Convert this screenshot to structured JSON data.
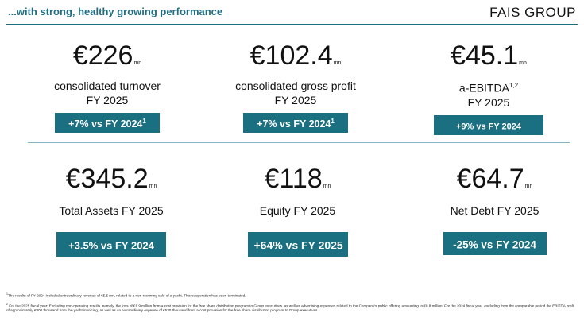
{
  "header": {
    "title": "...with strong, healthy growing performance",
    "brand": "FAIS GROUP"
  },
  "kpis": [
    {
      "value": "€226",
      "unit": "mn",
      "label": "consolidated turnover",
      "sup": "",
      "sublabel": "FY 2025",
      "badge": "+7% vs FY 2024",
      "badge_sup": "1"
    },
    {
      "value": "€102.4",
      "unit": "mn",
      "label": "consolidated gross profit",
      "sup": "",
      "sublabel": "FY 2025",
      "badge": "+7% vs FY 2024",
      "badge_sup": "1"
    },
    {
      "value": "€45.1",
      "unit": "mn",
      "label": "a-EBITDA",
      "sup": "1,2",
      "sublabel": "FY 2025",
      "badge": "+9% vs FY 2024",
      "badge_sup": ""
    },
    {
      "value": "€345.2",
      "unit": "mn",
      "label": "Total Assets FY 2025",
      "sup": "",
      "sublabel": "",
      "badge": "+3.5% vs FY 2024",
      "badge_sup": ""
    },
    {
      "value": "€118",
      "unit": "mn",
      "label": "Equity FY 2025",
      "sup": "",
      "sublabel": "",
      "badge": "+64% vs FY 2025",
      "badge_sup": ""
    },
    {
      "value": "€64.7",
      "unit": "mn",
      "label": "Net Debt FY 2025",
      "sup": "",
      "sublabel": "",
      "badge": "-25% vs FY 2024",
      "badge_sup": ""
    }
  ],
  "footnotes": [
    {
      "num": "1",
      "text": "The results of FY 2024 included extraordinary revenue of €5.5 mn, related to a non-recurring sale of a yacht. This cooperation has been terminated."
    },
    {
      "num": "2",
      "text": "For the 2025 fiscal year: Excluding non-operating results, namely, the loss of €1.9 million from a cost provision for the free share distribution program to Group executives, as well as advertising expenses related to the Company's public offering amounting to €0.8 million. For the 2024 fiscal year, excluding from the comparable period the EBITDA profit of approximately €800 thousand from the yacht invoicing, as well as an extraordinary expense of €530 thousand from a cost provision for the free share distribution program to Group executives."
    }
  ]
}
